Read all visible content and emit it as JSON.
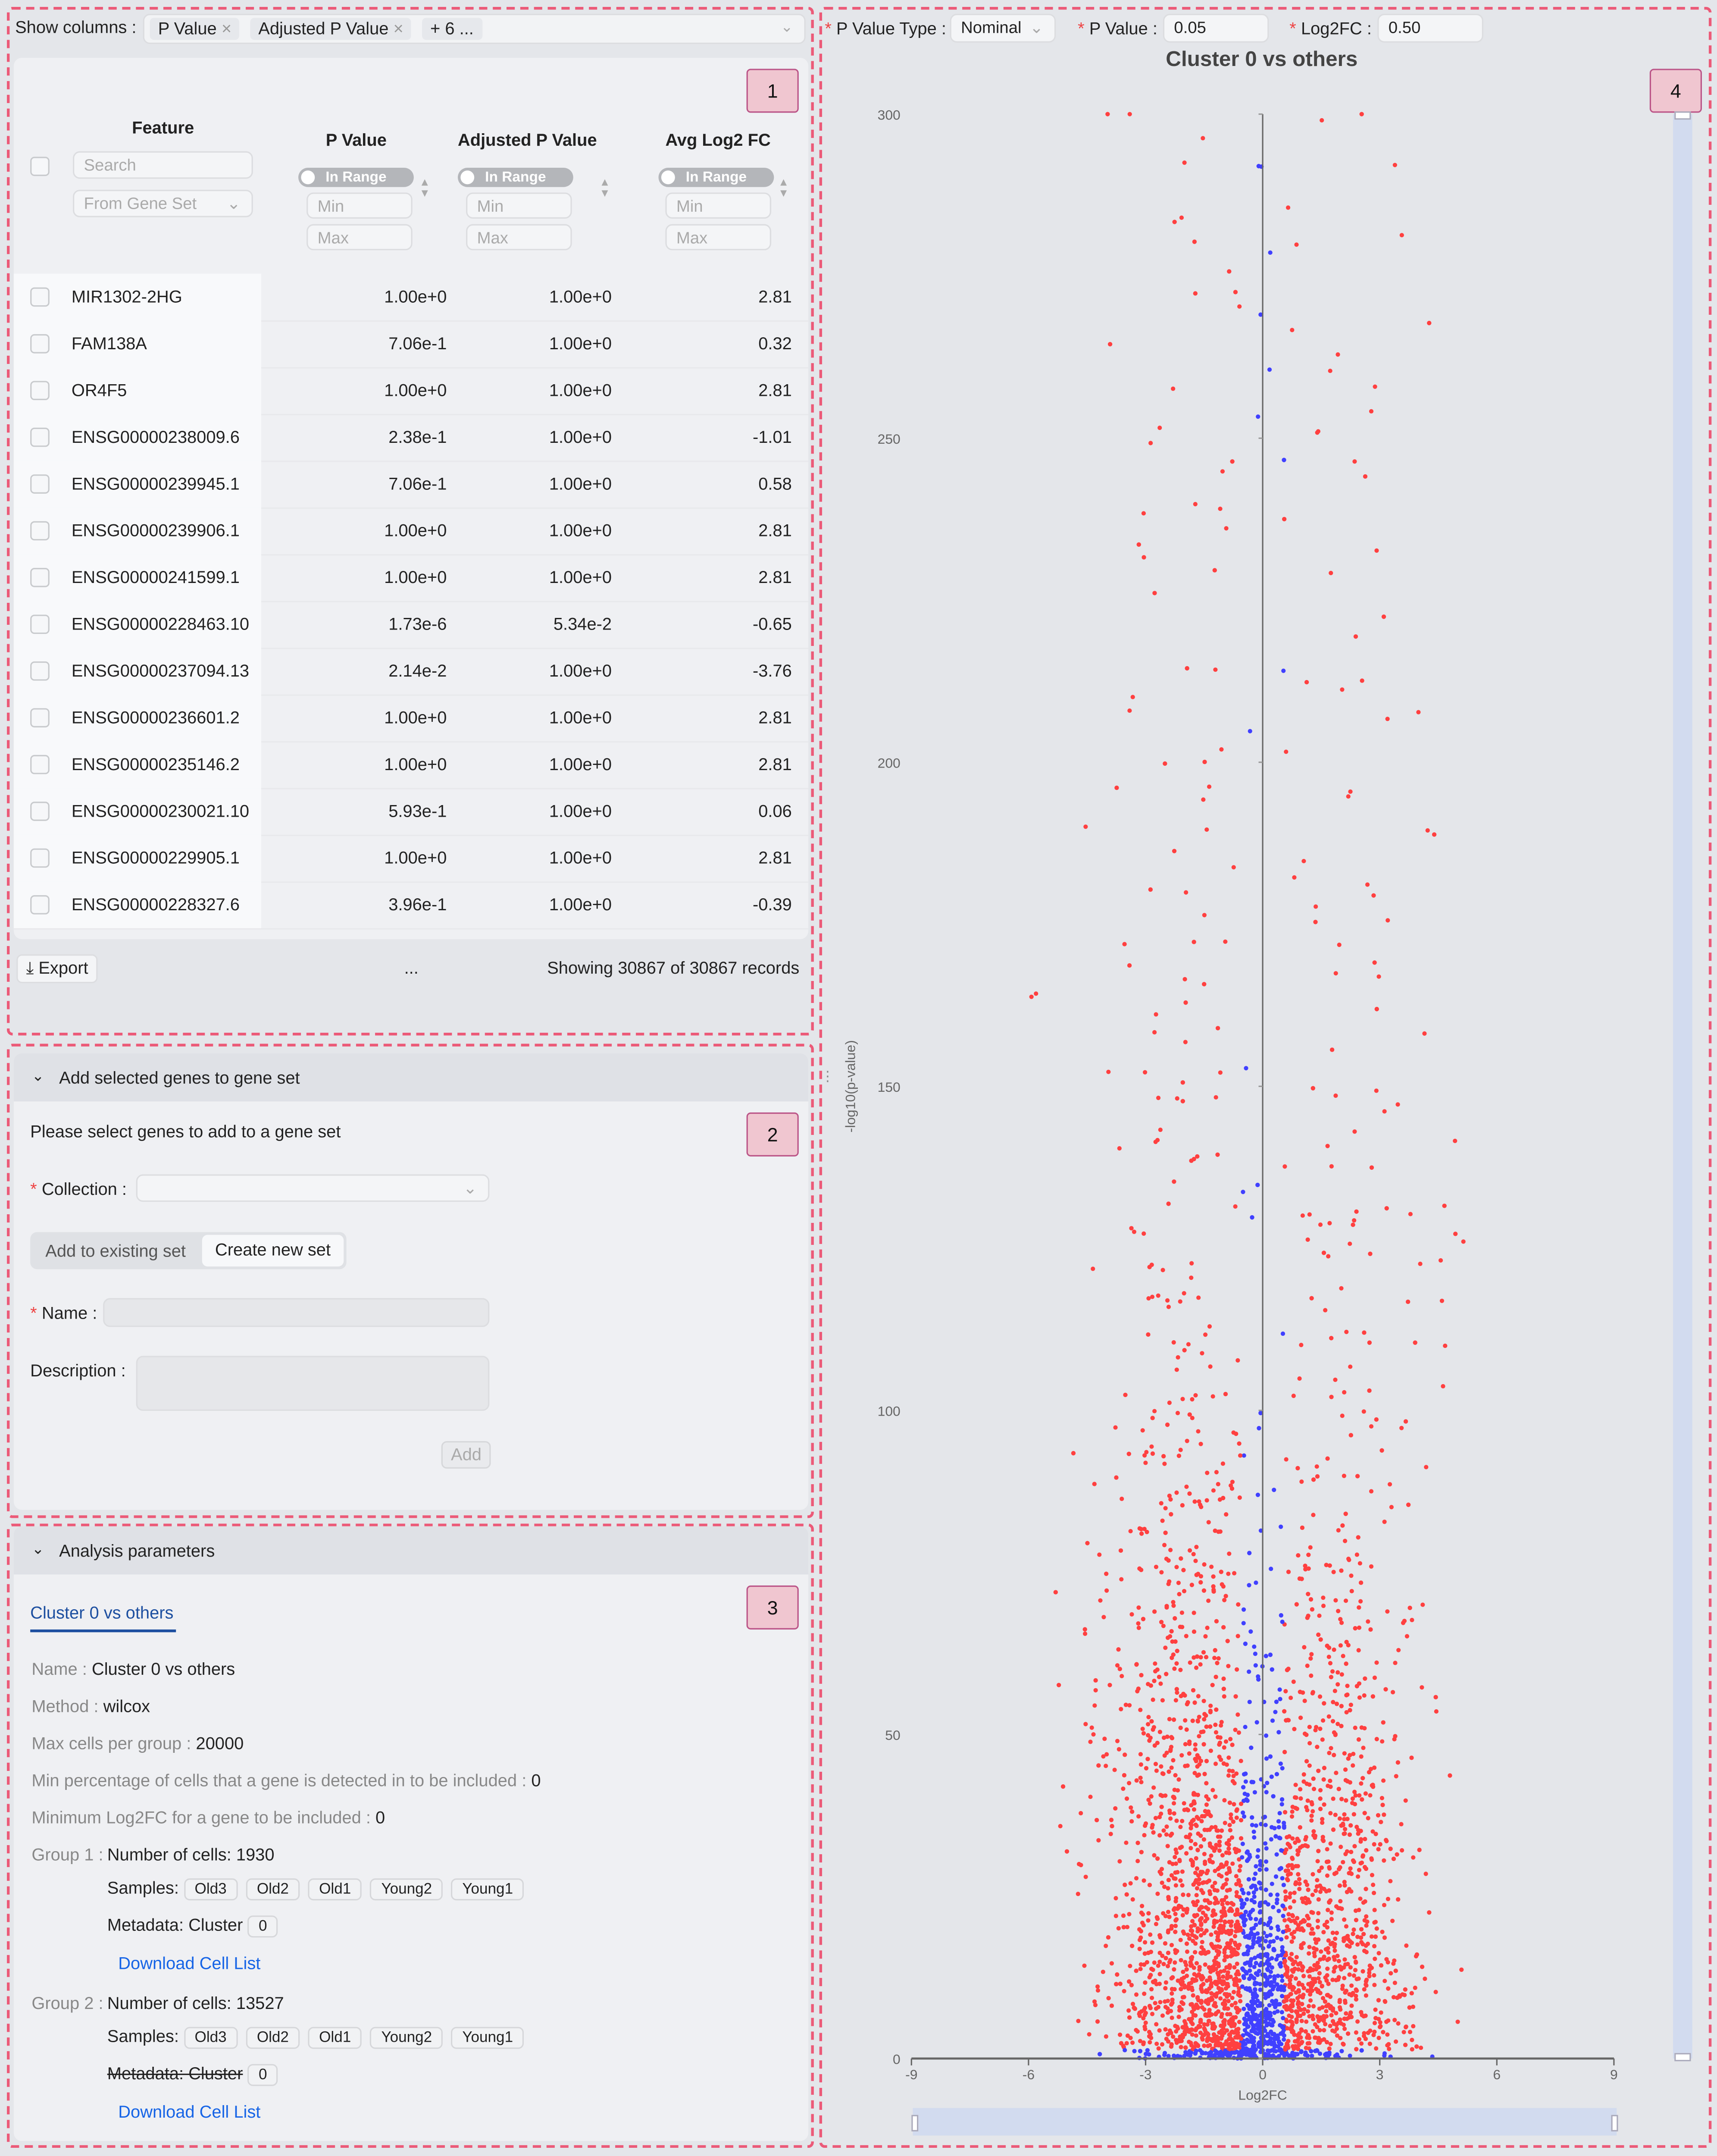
{
  "panel_badges": [
    "1",
    "2",
    "3",
    "4"
  ],
  "columns_selector": {
    "label": "Show columns",
    "tags": [
      "P Value",
      "Adjusted P Value",
      "+ 6 ..."
    ]
  },
  "table": {
    "headers": {
      "feature": "Feature",
      "pvalue": "P Value",
      "adjp": "Adjusted P Value",
      "log2fc": "Avg Log2 FC"
    },
    "search_placeholder": "Search",
    "gene_set_placeholder": "From Gene Set",
    "toggle_label": "In Range",
    "min_placeholder": "Min",
    "max_placeholder": "Max",
    "rows": [
      {
        "feature": "MIR1302-2HG",
        "pvalue": "1.00e+0",
        "adjp": "1.00e+0",
        "log2fc": "2.81"
      },
      {
        "feature": "FAM138A",
        "pvalue": "7.06e-1",
        "adjp": "1.00e+0",
        "log2fc": "0.32"
      },
      {
        "feature": "OR4F5",
        "pvalue": "1.00e+0",
        "adjp": "1.00e+0",
        "log2fc": "2.81"
      },
      {
        "feature": "ENSG00000238009.6",
        "pvalue": "2.38e-1",
        "adjp": "1.00e+0",
        "log2fc": "-1.01"
      },
      {
        "feature": "ENSG00000239945.1",
        "pvalue": "7.06e-1",
        "adjp": "1.00e+0",
        "log2fc": "0.58"
      },
      {
        "feature": "ENSG00000239906.1",
        "pvalue": "1.00e+0",
        "adjp": "1.00e+0",
        "log2fc": "2.81"
      },
      {
        "feature": "ENSG00000241599.1",
        "pvalue": "1.00e+0",
        "adjp": "1.00e+0",
        "log2fc": "2.81"
      },
      {
        "feature": "ENSG00000228463.10",
        "pvalue": "1.73e-6",
        "adjp": "5.34e-2",
        "log2fc": "-0.65"
      },
      {
        "feature": "ENSG00000237094.13",
        "pvalue": "2.14e-2",
        "adjp": "1.00e+0",
        "log2fc": "-3.76"
      },
      {
        "feature": "ENSG00000236601.2",
        "pvalue": "1.00e+0",
        "adjp": "1.00e+0",
        "log2fc": "2.81"
      },
      {
        "feature": "ENSG00000235146.2",
        "pvalue": "1.00e+0",
        "adjp": "1.00e+0",
        "log2fc": "2.81"
      },
      {
        "feature": "ENSG00000230021.10",
        "pvalue": "5.93e-1",
        "adjp": "1.00e+0",
        "log2fc": "0.06"
      },
      {
        "feature": "ENSG00000229905.1",
        "pvalue": "1.00e+0",
        "adjp": "1.00e+0",
        "log2fc": "2.81"
      },
      {
        "feature": "ENSG00000228327.6",
        "pvalue": "3.96e-1",
        "adjp": "1.00e+0",
        "log2fc": "-0.39"
      }
    ],
    "export_label": "Export",
    "ellipsis": "...",
    "records_text": "Showing 30867 of 30867 records"
  },
  "gene_set": {
    "header": "Add selected genes to gene set",
    "hint": "Please select genes to add to a gene set",
    "collection_label": "Collection",
    "tab_existing": "Add to existing set",
    "tab_new": "Create new set",
    "name_label": "Name",
    "description_label": "Description",
    "add_label": "Add"
  },
  "analysis": {
    "header": "Analysis parameters",
    "tab": "Cluster 0 vs others",
    "fields": [
      {
        "label": "Name",
        "value": "Cluster 0 vs others"
      },
      {
        "label": "Method",
        "value": "wilcox"
      },
      {
        "label": "Max cells per group",
        "value": "20000"
      },
      {
        "label": "Min percentage of cells that a gene is detected in to be included",
        "value": "0"
      },
      {
        "label": "Minimum Log2FC for a gene to be included",
        "value": "0"
      }
    ],
    "groups": [
      {
        "label": "Group 1",
        "cells": "Number of cells: 1930",
        "samples_label": "Samples:",
        "samples": [
          "Old3",
          "Old2",
          "Old1",
          "Young2",
          "Young1"
        ],
        "metadata": "Metadata: Cluster",
        "metadata_value": "0",
        "download": "Download Cell List"
      },
      {
        "label": "Group 2",
        "cells": "Number of cells: 13527",
        "samples_label": "Samples:",
        "samples": [
          "Old3",
          "Old2",
          "Old1",
          "Young2",
          "Young1"
        ],
        "metadata": "Metadata: Cluster",
        "metadata_value": "0",
        "download": "Download Cell List"
      }
    ]
  },
  "plot_controls": {
    "pvalue_type_label": "P Value Type",
    "pvalue_type": "Nominal",
    "pvalue_label": "P Value",
    "pvalue": "0.05",
    "log2fc_label": "Log2FC",
    "log2fc": "0.50"
  },
  "chart_data": {
    "type": "scatter",
    "title": "Cluster 0 vs others",
    "xlabel": "Log2FC",
    "ylabel": "-log10(p-value)",
    "xlim": [
      -9,
      9
    ],
    "ylim": [
      0,
      300
    ],
    "xticks": [
      "-9",
      "-6",
      "-3",
      "0",
      "3",
      "6",
      "9"
    ],
    "yticks": [
      "0",
      "50",
      "100",
      "150",
      "200",
      "250",
      "300"
    ],
    "n_points": 30867,
    "pvalue_threshold": 0.05,
    "log2fc_threshold": 0.5,
    "colors": {
      "significant": "#ff4040",
      "not_significant": "#4040ff"
    },
    "note": "volcano plot; points significant when p<0.05 and |log2FC|>0.5 (red), else blue; y capped at 300"
  }
}
